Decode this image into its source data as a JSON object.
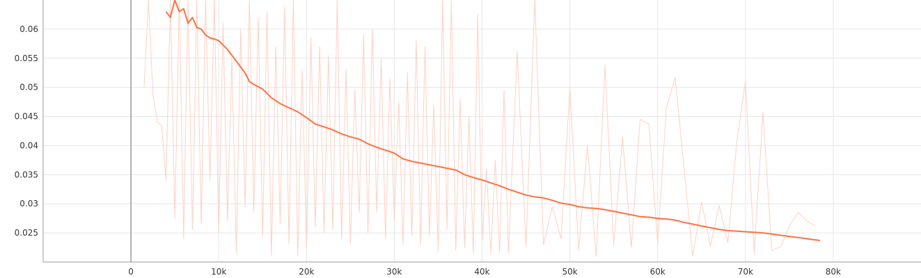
{
  "chart_data": {
    "type": "line",
    "title": "",
    "xlabel": "",
    "ylabel": "",
    "xlim": [
      -10000,
      90000
    ],
    "ylim": [
      0.02,
      0.065
    ],
    "grid": true,
    "legend": "none",
    "x_ticks": [
      0,
      10000,
      20000,
      30000,
      40000,
      50000,
      60000,
      70000,
      80000
    ],
    "x_tick_labels": [
      "0",
      "10k",
      "20k",
      "30k",
      "40k",
      "50k",
      "60k",
      "70k",
      "80k"
    ],
    "y_ticks": [
      0.025,
      0.03,
      0.035,
      0.04,
      0.045,
      0.05,
      0.055,
      0.06
    ],
    "y_tick_labels": [
      "0.025",
      "0.03",
      "0.035",
      "0.04",
      "0.045",
      "0.05",
      "0.055",
      "0.06"
    ],
    "colors": {
      "smoothed": "#ff7043",
      "raw": "#ffd0c2",
      "axis": "#999999",
      "grid": "#e6e6e6"
    },
    "series": [
      {
        "kind": "smoothed",
        "x": [
          4000,
          4500,
          5000,
          5500,
          6000,
          6500,
          7000,
          7500,
          8000,
          8500,
          9000,
          9500,
          10000,
          11000,
          12000,
          13000,
          13500,
          14000,
          15000,
          16000,
          17000,
          18000,
          19000,
          20000,
          21000,
          22000,
          23000,
          24000,
          25000,
          26000,
          27000,
          28000,
          29000,
          30000,
          31000,
          32000,
          33000,
          34000,
          35000,
          36000,
          37000,
          38000,
          39000,
          40000,
          41000,
          42000,
          43000,
          44000,
          45000,
          46000,
          47000,
          48000,
          49000,
          50000,
          51000,
          52000,
          53000,
          54000,
          55000,
          56000,
          57000,
          58000,
          59000,
          60000,
          61000,
          62000,
          63000,
          64000,
          65000,
          66000,
          67000,
          68000,
          69000,
          70000,
          71000,
          72000,
          73000,
          74000,
          75000,
          76000,
          77000,
          78000,
          78500
        ],
        "y": [
          0.063,
          0.062,
          0.065,
          0.063,
          0.0635,
          0.061,
          0.062,
          0.0603,
          0.06,
          0.059,
          0.0585,
          0.0583,
          0.058,
          0.0565,
          0.0545,
          0.0525,
          0.051,
          0.0505,
          0.0497,
          0.0482,
          0.0472,
          0.0465,
          0.0458,
          0.0448,
          0.0437,
          0.0432,
          0.0427,
          0.042,
          0.0415,
          0.0411,
          0.0403,
          0.0397,
          0.0392,
          0.0387,
          0.0377,
          0.0373,
          0.037,
          0.0367,
          0.0364,
          0.0361,
          0.0358,
          0.035,
          0.0345,
          0.0341,
          0.0336,
          0.0331,
          0.0325,
          0.032,
          0.0315,
          0.0312,
          0.031,
          0.0306,
          0.0301,
          0.0299,
          0.0295,
          0.0293,
          0.0292,
          0.029,
          0.0287,
          0.0284,
          0.0281,
          0.0278,
          0.0277,
          0.0275,
          0.0274,
          0.0272,
          0.0268,
          0.0265,
          0.0262,
          0.0259,
          0.0256,
          0.0254,
          0.0253,
          0.0252,
          0.0251,
          0.025,
          0.0248,
          0.0246,
          0.0244,
          0.0242,
          0.024,
          0.0238,
          0.0237
        ]
      },
      {
        "kind": "raw",
        "x": [
          1500,
          2000,
          2500,
          3000,
          3500,
          4000,
          4500,
          5000,
          5500,
          6000,
          6500,
          7000,
          7500,
          8000,
          8500,
          9000,
          9500,
          10000,
          10500,
          11000,
          11500,
          12000,
          12500,
          13000,
          13500,
          14000,
          14500,
          15000,
          15500,
          16000,
          16500,
          17000,
          17500,
          18000,
          18500,
          19000,
          19500,
          20000,
          20500,
          21000,
          21500,
          22000,
          22500,
          23000,
          23500,
          24000,
          24500,
          25000,
          25500,
          26000,
          26500,
          27000,
          27500,
          28000,
          28500,
          29000,
          29500,
          30000,
          30500,
          31000,
          31500,
          32000,
          32500,
          33000,
          33500,
          34000,
          34500,
          35000,
          35500,
          36000,
          36500,
          37000,
          37500,
          38000,
          38500,
          39000,
          39500,
          40000,
          40500,
          41000,
          41500,
          42000,
          42500,
          43000,
          44000,
          45000,
          46000,
          47000,
          48000,
          49000,
          50000,
          51000,
          52000,
          53000,
          54000,
          55000,
          56000,
          57000,
          58000,
          59000,
          60000,
          61000,
          62000,
          63000,
          64000,
          65000,
          66000,
          67000,
          68000,
          69000,
          70000,
          71000,
          72000,
          73000,
          74000,
          75000,
          76000,
          77000,
          78000
        ],
        "y": [
          0.05,
          0.065,
          0.049,
          0.044,
          0.0435,
          0.034,
          0.065,
          0.0275,
          0.065,
          0.024,
          0.065,
          0.0255,
          0.065,
          0.0265,
          0.065,
          0.034,
          0.065,
          0.025,
          0.061,
          0.027,
          0.055,
          0.0215,
          0.06,
          0.0295,
          0.065,
          0.0285,
          0.062,
          0.0245,
          0.063,
          0.021,
          0.057,
          0.0265,
          0.064,
          0.0232,
          0.065,
          0.021,
          0.053,
          0.0225,
          0.0585,
          0.026,
          0.057,
          0.025,
          0.0555,
          0.0255,
          0.065,
          0.024,
          0.053,
          0.023,
          0.0495,
          0.0285,
          0.059,
          0.025,
          0.06,
          0.0285,
          0.055,
          0.024,
          0.0515,
          0.027,
          0.0475,
          0.023,
          0.0525,
          0.0245,
          0.058,
          0.023,
          0.057,
          0.0245,
          0.047,
          0.022,
          0.065,
          0.0255,
          0.065,
          0.022,
          0.048,
          0.0225,
          0.045,
          0.0215,
          0.0625,
          0.0235,
          0.036,
          0.0215,
          0.0375,
          0.0215,
          0.0495,
          0.0215,
          0.0562,
          0.0225,
          0.065,
          0.023,
          0.0295,
          0.024,
          0.05,
          0.022,
          0.04,
          0.021,
          0.0538,
          0.023,
          0.0415,
          0.0225,
          0.0445,
          0.0437,
          0.0232,
          0.0465,
          0.0517,
          0.0363,
          0.021,
          0.0303,
          0.0227,
          0.0297,
          0.0233,
          0.0404,
          0.0511,
          0.0215,
          0.0457,
          0.022,
          0.0226,
          0.0262,
          0.0285,
          0.027,
          0.0262
        ]
      }
    ]
  }
}
